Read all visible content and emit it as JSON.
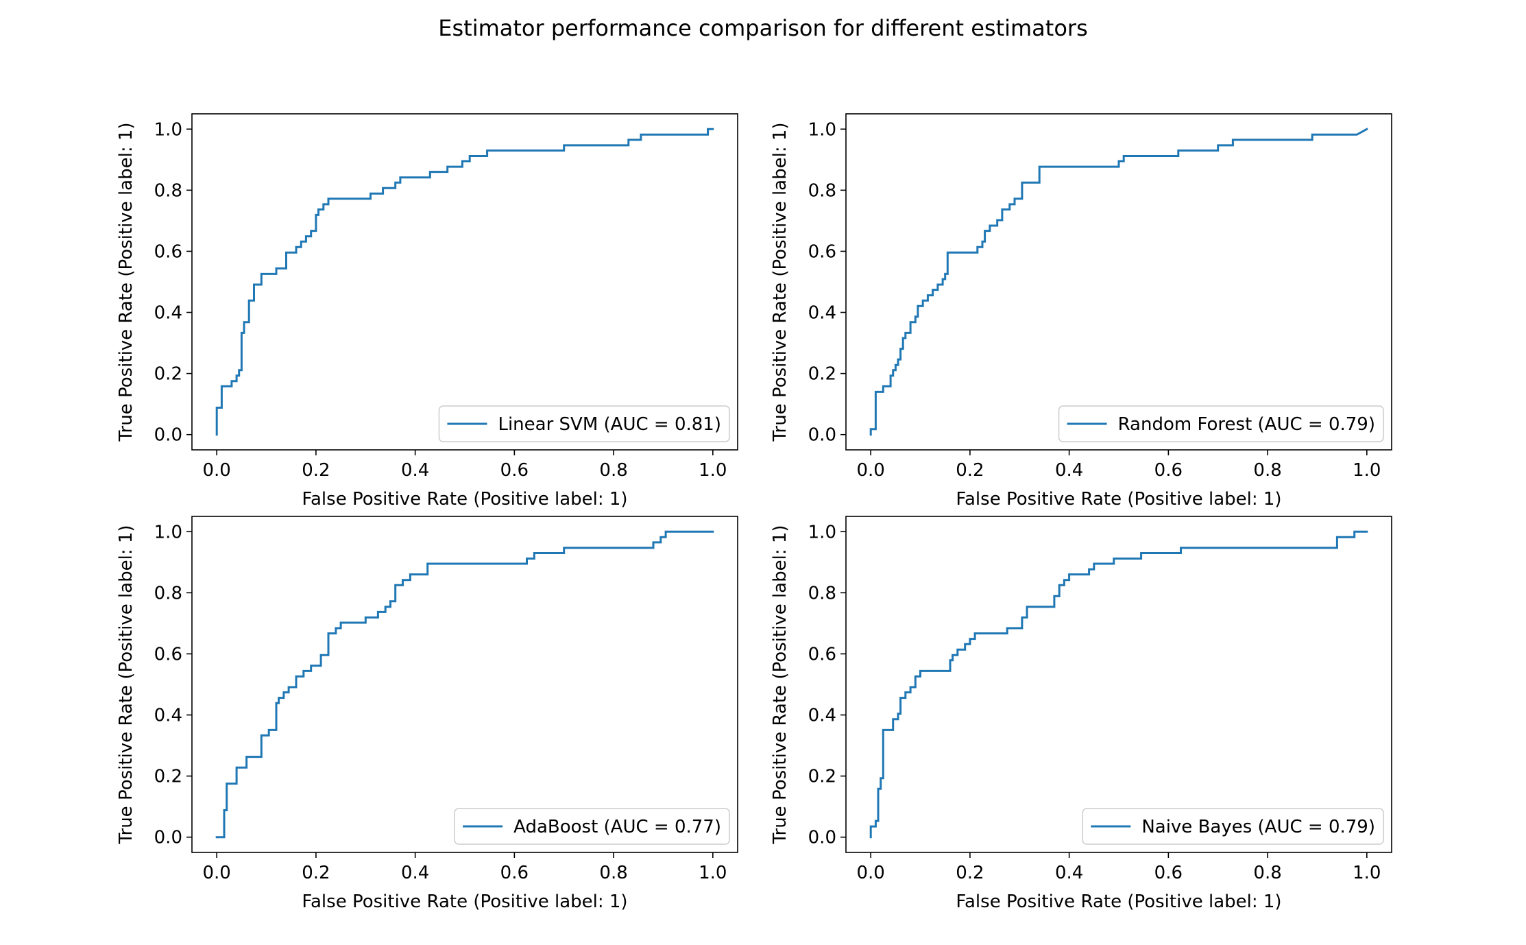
{
  "figure": {
    "title": "Estimator performance comparison for different estimators"
  },
  "chart_data": [
    {
      "type": "line",
      "xlabel": "False Positive Rate (Positive label: 1)",
      "ylabel": "True Positive Rate (Positive label: 1)",
      "xlim": [
        -0.05,
        1.05
      ],
      "ylim": [
        -0.05,
        1.05
      ],
      "xticks": [
        "0.0",
        "0.2",
        "0.4",
        "0.6",
        "0.8",
        "1.0"
      ],
      "yticks": [
        "0.0",
        "0.2",
        "0.4",
        "0.6",
        "0.8",
        "1.0"
      ],
      "legend_position": "lower right",
      "line_color": "#1f77b4",
      "series": [
        {
          "name": "Linear SVM (AUC = 0.81)",
          "x": [
            0.0,
            0.0,
            0.0,
            0.01,
            0.01,
            0.03,
            0.03,
            0.04,
            0.04,
            0.045,
            0.045,
            0.05,
            0.05,
            0.055,
            0.055,
            0.065,
            0.065,
            0.075,
            0.075,
            0.08,
            0.08,
            0.09,
            0.09,
            0.11,
            0.11,
            0.12,
            0.12,
            0.14,
            0.14,
            0.16,
            0.16,
            0.17,
            0.17,
            0.18,
            0.18,
            0.19,
            0.19,
            0.2,
            0.2,
            0.205,
            0.205,
            0.215,
            0.215,
            0.225,
            0.225,
            0.31,
            0.31,
            0.335,
            0.335,
            0.36,
            0.36,
            0.37,
            0.37,
            0.43,
            0.43,
            0.465,
            0.465,
            0.495,
            0.495,
            0.51,
            0.51,
            0.545,
            0.545,
            0.7,
            0.7,
            0.83,
            0.83,
            0.855,
            0.855,
            0.99,
            0.99,
            1.0
          ],
          "y": [
            0.0,
            0.088,
            0.088,
            0.088,
            0.158,
            0.158,
            0.175,
            0.175,
            0.193,
            0.193,
            0.211,
            0.211,
            0.333,
            0.333,
            0.368,
            0.368,
            0.439,
            0.439,
            0.491,
            0.491,
            0.491,
            0.491,
            0.526,
            0.526,
            0.526,
            0.526,
            0.544,
            0.544,
            0.596,
            0.596,
            0.614,
            0.614,
            0.632,
            0.632,
            0.649,
            0.649,
            0.667,
            0.667,
            0.719,
            0.719,
            0.737,
            0.737,
            0.754,
            0.754,
            0.772,
            0.772,
            0.789,
            0.789,
            0.807,
            0.807,
            0.825,
            0.825,
            0.842,
            0.842,
            0.86,
            0.86,
            0.877,
            0.877,
            0.895,
            0.895,
            0.912,
            0.912,
            0.93,
            0.93,
            0.947,
            0.947,
            0.965,
            0.965,
            0.982,
            0.982,
            1.0,
            1.0
          ]
        }
      ]
    },
    {
      "type": "line",
      "xlabel": "False Positive Rate (Positive label: 1)",
      "ylabel": "True Positive Rate (Positive label: 1)",
      "xlim": [
        -0.05,
        1.05
      ],
      "ylim": [
        -0.05,
        1.05
      ],
      "xticks": [
        "0.0",
        "0.2",
        "0.4",
        "0.6",
        "0.8",
        "1.0"
      ],
      "yticks": [
        "0.0",
        "0.2",
        "0.4",
        "0.6",
        "0.8",
        "1.0"
      ],
      "legend_position": "lower right",
      "line_color": "#1f77b4",
      "series": [
        {
          "name": "Random Forest (AUC = 0.79)",
          "x": [
            0.0,
            0.0,
            0.005,
            0.005,
            0.01,
            0.01,
            0.025,
            0.025,
            0.03,
            0.03,
            0.04,
            0.04,
            0.045,
            0.045,
            0.05,
            0.05,
            0.055,
            0.055,
            0.06,
            0.06,
            0.065,
            0.065,
            0.07,
            0.07,
            0.08,
            0.08,
            0.09,
            0.09,
            0.095,
            0.095,
            0.105,
            0.105,
            0.115,
            0.115,
            0.125,
            0.125,
            0.135,
            0.135,
            0.145,
            0.145,
            0.15,
            0.15,
            0.155,
            0.155,
            0.215,
            0.215,
            0.225,
            0.225,
            0.23,
            0.23,
            0.24,
            0.24,
            0.255,
            0.255,
            0.265,
            0.265,
            0.28,
            0.28,
            0.29,
            0.29,
            0.305,
            0.305,
            0.34,
            0.34,
            0.5,
            0.5,
            0.51,
            0.51,
            0.62,
            0.62,
            0.7,
            0.7,
            0.73,
            0.73,
            0.76,
            0.76,
            0.89,
            0.89,
            0.98,
            1.0
          ],
          "y": [
            0.0,
            0.018,
            0.018,
            0.018,
            0.018,
            0.14,
            0.14,
            0.158,
            0.158,
            0.158,
            0.158,
            0.193,
            0.193,
            0.211,
            0.211,
            0.228,
            0.228,
            0.246,
            0.246,
            0.281,
            0.281,
            0.316,
            0.316,
            0.333,
            0.333,
            0.368,
            0.368,
            0.386,
            0.386,
            0.421,
            0.421,
            0.439,
            0.439,
            0.456,
            0.456,
            0.474,
            0.474,
            0.491,
            0.491,
            0.509,
            0.509,
            0.526,
            0.526,
            0.596,
            0.596,
            0.614,
            0.614,
            0.632,
            0.632,
            0.667,
            0.667,
            0.684,
            0.684,
            0.702,
            0.702,
            0.737,
            0.737,
            0.754,
            0.754,
            0.772,
            0.772,
            0.825,
            0.825,
            0.877,
            0.877,
            0.895,
            0.895,
            0.912,
            0.912,
            0.93,
            0.93,
            0.947,
            0.947,
            0.965,
            0.965,
            0.965,
            0.965,
            0.982,
            0.982,
            1.0
          ]
        }
      ]
    },
    {
      "type": "line",
      "xlabel": "False Positive Rate (Positive label: 1)",
      "ylabel": "True Positive Rate (Positive label: 1)",
      "xlim": [
        -0.05,
        1.05
      ],
      "ylim": [
        -0.05,
        1.05
      ],
      "xticks": [
        "0.0",
        "0.2",
        "0.4",
        "0.6",
        "0.8",
        "1.0"
      ],
      "yticks": [
        "0.0",
        "0.2",
        "0.4",
        "0.6",
        "0.8",
        "1.0"
      ],
      "legend_position": "lower right",
      "line_color": "#1f77b4",
      "series": [
        {
          "name": "AdaBoost (AUC = 0.77)",
          "x": [
            0.0,
            0.015,
            0.015,
            0.02,
            0.02,
            0.04,
            0.04,
            0.06,
            0.06,
            0.09,
            0.09,
            0.105,
            0.105,
            0.12,
            0.12,
            0.125,
            0.125,
            0.135,
            0.135,
            0.145,
            0.145,
            0.16,
            0.16,
            0.175,
            0.175,
            0.19,
            0.19,
            0.21,
            0.21,
            0.225,
            0.225,
            0.24,
            0.24,
            0.25,
            0.25,
            0.3,
            0.3,
            0.325,
            0.325,
            0.34,
            0.34,
            0.35,
            0.35,
            0.36,
            0.36,
            0.375,
            0.375,
            0.39,
            0.39,
            0.425,
            0.425,
            0.625,
            0.625,
            0.64,
            0.64,
            0.7,
            0.7,
            0.88,
            0.88,
            0.895,
            0.895,
            0.905,
            0.905,
            1.0
          ],
          "y": [
            0.0,
            0.0,
            0.088,
            0.088,
            0.175,
            0.175,
            0.228,
            0.228,
            0.263,
            0.263,
            0.333,
            0.333,
            0.351,
            0.351,
            0.439,
            0.439,
            0.456,
            0.456,
            0.474,
            0.474,
            0.491,
            0.491,
            0.526,
            0.526,
            0.544,
            0.544,
            0.561,
            0.561,
            0.596,
            0.596,
            0.667,
            0.667,
            0.684,
            0.684,
            0.702,
            0.702,
            0.719,
            0.719,
            0.737,
            0.737,
            0.754,
            0.754,
            0.772,
            0.772,
            0.825,
            0.825,
            0.842,
            0.842,
            0.86,
            0.86,
            0.895,
            0.895,
            0.912,
            0.912,
            0.93,
            0.93,
            0.947,
            0.947,
            0.965,
            0.965,
            0.982,
            0.982,
            1.0,
            1.0
          ]
        }
      ]
    },
    {
      "type": "line",
      "xlabel": "False Positive Rate (Positive label: 1)",
      "ylabel": "True Positive Rate (Positive label: 1)",
      "xlim": [
        -0.05,
        1.05
      ],
      "ylim": [
        -0.05,
        1.05
      ],
      "xticks": [
        "0.0",
        "0.2",
        "0.4",
        "0.6",
        "0.8",
        "1.0"
      ],
      "yticks": [
        "0.0",
        "0.2",
        "0.4",
        "0.6",
        "0.8",
        "1.0"
      ],
      "legend_position": "lower right",
      "line_color": "#1f77b4",
      "series": [
        {
          "name": "Naive Bayes (AUC = 0.79)",
          "x": [
            0.0,
            0.0,
            0.005,
            0.005,
            0.01,
            0.01,
            0.015,
            0.015,
            0.02,
            0.02,
            0.025,
            0.025,
            0.03,
            0.03,
            0.045,
            0.045,
            0.055,
            0.055,
            0.06,
            0.06,
            0.07,
            0.07,
            0.08,
            0.08,
            0.09,
            0.09,
            0.1,
            0.1,
            0.16,
            0.16,
            0.165,
            0.165,
            0.175,
            0.175,
            0.19,
            0.19,
            0.2,
            0.2,
            0.21,
            0.21,
            0.275,
            0.275,
            0.305,
            0.305,
            0.315,
            0.315,
            0.37,
            0.37,
            0.38,
            0.38,
            0.39,
            0.39,
            0.4,
            0.4,
            0.44,
            0.44,
            0.45,
            0.45,
            0.49,
            0.49,
            0.545,
            0.545,
            0.625,
            0.625,
            0.94,
            0.94,
            0.975,
            0.975,
            1.0
          ],
          "y": [
            0.0,
            0.035,
            0.035,
            0.035,
            0.035,
            0.053,
            0.053,
            0.158,
            0.158,
            0.193,
            0.193,
            0.351,
            0.351,
            0.351,
            0.351,
            0.386,
            0.386,
            0.404,
            0.404,
            0.456,
            0.456,
            0.474,
            0.474,
            0.491,
            0.491,
            0.526,
            0.526,
            0.544,
            0.544,
            0.579,
            0.579,
            0.596,
            0.596,
            0.614,
            0.614,
            0.632,
            0.632,
            0.649,
            0.649,
            0.667,
            0.667,
            0.684,
            0.684,
            0.719,
            0.719,
            0.754,
            0.754,
            0.789,
            0.789,
            0.825,
            0.825,
            0.842,
            0.842,
            0.86,
            0.86,
            0.877,
            0.877,
            0.895,
            0.895,
            0.912,
            0.912,
            0.93,
            0.93,
            0.947,
            0.947,
            0.982,
            0.982,
            1.0,
            1.0
          ]
        }
      ]
    }
  ]
}
